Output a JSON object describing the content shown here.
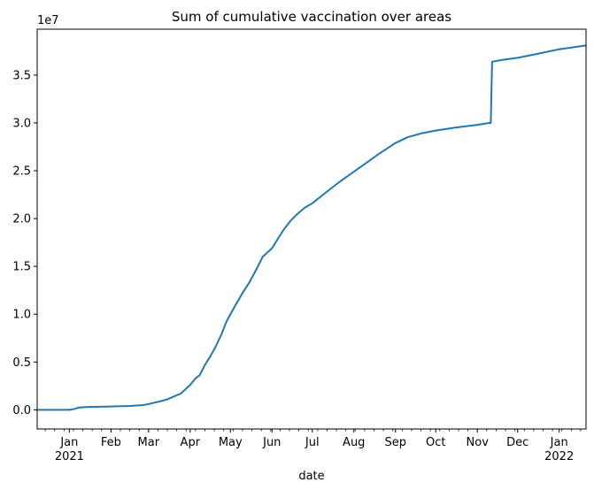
{
  "chart_data": {
    "type": "line",
    "title": "Sum of cumulative vaccination over areas",
    "xlabel": "date",
    "ylabel": "",
    "y_multiplier_label": "1e7",
    "x_range": [
      "2020-12-08",
      "2022-01-21"
    ],
    "ylim": [
      -0.2,
      3.98
    ],
    "y_ticks": [
      {
        "value": 0.0,
        "label": "0.0"
      },
      {
        "value": 0.5,
        "label": "0.5"
      },
      {
        "value": 1.0,
        "label": "1.0"
      },
      {
        "value": 1.5,
        "label": "1.5"
      },
      {
        "value": 2.0,
        "label": "2.0"
      },
      {
        "value": 2.5,
        "label": "2.5"
      },
      {
        "value": 3.0,
        "label": "3.0"
      },
      {
        "value": 3.5,
        "label": "3.5"
      }
    ],
    "x_ticks": [
      {
        "date": "2021-01-01",
        "label": "Jan",
        "sublabel": "2021"
      },
      {
        "date": "2021-02-01",
        "label": "Feb",
        "sublabel": ""
      },
      {
        "date": "2021-03-01",
        "label": "Mar",
        "sublabel": ""
      },
      {
        "date": "2021-04-01",
        "label": "Apr",
        "sublabel": ""
      },
      {
        "date": "2021-05-01",
        "label": "May",
        "sublabel": ""
      },
      {
        "date": "2021-06-01",
        "label": "Jun",
        "sublabel": ""
      },
      {
        "date": "2021-07-01",
        "label": "Jul",
        "sublabel": ""
      },
      {
        "date": "2021-08-01",
        "label": "Aug",
        "sublabel": ""
      },
      {
        "date": "2021-09-01",
        "label": "Sep",
        "sublabel": ""
      },
      {
        "date": "2021-10-01",
        "label": "Oct",
        "sublabel": ""
      },
      {
        "date": "2021-11-01",
        "label": "Nov",
        "sublabel": ""
      },
      {
        "date": "2021-12-01",
        "label": "Dec",
        "sublabel": ""
      },
      {
        "date": "2022-01-01",
        "label": "Jan",
        "sublabel": "2022"
      }
    ],
    "series": [
      {
        "color": "#1f77b4",
        "x": [
          "2020-12-08",
          "2020-12-20",
          "2021-01-01",
          "2021-01-05",
          "2021-01-08",
          "2021-01-15",
          "2021-02-01",
          "2021-02-15",
          "2021-02-20",
          "2021-02-25",
          "2021-03-01",
          "2021-03-05",
          "2021-03-10",
          "2021-03-15",
          "2021-03-20",
          "2021-03-25",
          "2021-04-01",
          "2021-04-05",
          "2021-04-08",
          "2021-04-12",
          "2021-04-16",
          "2021-04-20",
          "2021-04-24",
          "2021-04-28",
          "2021-05-01",
          "2021-05-05",
          "2021-05-10",
          "2021-05-15",
          "2021-05-20",
          "2021-05-25",
          "2021-06-01",
          "2021-06-05",
          "2021-06-10",
          "2021-06-15",
          "2021-06-20",
          "2021-06-25",
          "2021-07-01",
          "2021-07-10",
          "2021-07-20",
          "2021-08-01",
          "2021-08-10",
          "2021-08-20",
          "2021-09-01",
          "2021-09-10",
          "2021-09-20",
          "2021-10-01",
          "2021-10-15",
          "2021-11-01",
          "2021-11-10",
          "2021-11-11",
          "2021-11-12",
          "2021-11-20",
          "2021-12-01",
          "2021-12-15",
          "2022-01-01",
          "2022-01-21"
        ],
        "y": [
          0.0,
          0.0,
          0.0,
          0.01,
          0.025,
          0.03,
          0.035,
          0.04,
          0.045,
          0.05,
          0.06,
          0.075,
          0.09,
          0.11,
          0.14,
          0.17,
          0.26,
          0.33,
          0.36,
          0.47,
          0.56,
          0.66,
          0.78,
          0.92,
          1.0,
          1.1,
          1.22,
          1.33,
          1.46,
          1.6,
          1.69,
          1.78,
          1.89,
          1.98,
          2.05,
          2.11,
          2.16,
          2.26,
          2.37,
          2.49,
          2.58,
          2.68,
          2.79,
          2.85,
          2.89,
          2.92,
          2.95,
          2.98,
          3.0,
          3.0,
          3.64,
          3.66,
          3.68,
          3.72,
          3.77,
          3.81
        ]
      }
    ]
  }
}
